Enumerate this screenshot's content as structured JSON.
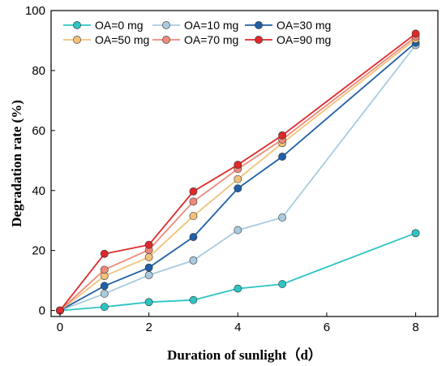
{
  "chart_data": {
    "type": "line",
    "xlabel": "Duration of sunlight（d）",
    "ylabel": "Degradation rate (%)",
    "xlim": [
      -0.2,
      8.5
    ],
    "ylim": [
      -2,
      100
    ],
    "x_ticks": [
      0,
      2,
      4,
      6,
      8
    ],
    "y_ticks": [
      0,
      20,
      40,
      60,
      80,
      100
    ],
    "grid": false,
    "legend": "top-left, 3 columns",
    "series": [
      {
        "name": "OA=0 mg",
        "color": "#2ec4c4",
        "x": [
          0,
          1,
          2,
          3,
          4,
          5,
          8
        ],
        "values": [
          0,
          1.2,
          2.8,
          3.5,
          7.3,
          8.8,
          25.8
        ]
      },
      {
        "name": "OA=10 mg",
        "color": "#a9cbe0",
        "x": [
          0,
          1,
          2,
          3,
          4,
          5,
          8
        ],
        "values": [
          0,
          5.6,
          11.8,
          16.7,
          26.8,
          31.0,
          88.5
        ]
      },
      {
        "name": "OA=30 mg",
        "color": "#1f5fa8",
        "x": [
          0,
          1,
          2,
          3,
          4,
          5,
          8
        ],
        "values": [
          0,
          8.2,
          14.3,
          24.5,
          40.7,
          51.3,
          89.3
        ]
      },
      {
        "name": "OA=50 mg",
        "color": "#f2c27a",
        "x": [
          0,
          1,
          2,
          3,
          4,
          5,
          8
        ],
        "values": [
          0,
          11.5,
          17.8,
          31.5,
          43.8,
          55.8,
          90.5
        ]
      },
      {
        "name": "OA=70 mg",
        "color": "#ee8a7a",
        "x": [
          0,
          1,
          2,
          3,
          4,
          5,
          8
        ],
        "values": [
          0,
          13.6,
          20.2,
          36.3,
          47.2,
          57.0,
          91.3
        ]
      },
      {
        "name": "OA=90 mg",
        "color": "#e0282a",
        "x": [
          0,
          1,
          2,
          3,
          4,
          5,
          8
        ],
        "values": [
          0,
          18.9,
          21.9,
          39.7,
          48.6,
          58.4,
          92.3
        ]
      }
    ]
  }
}
